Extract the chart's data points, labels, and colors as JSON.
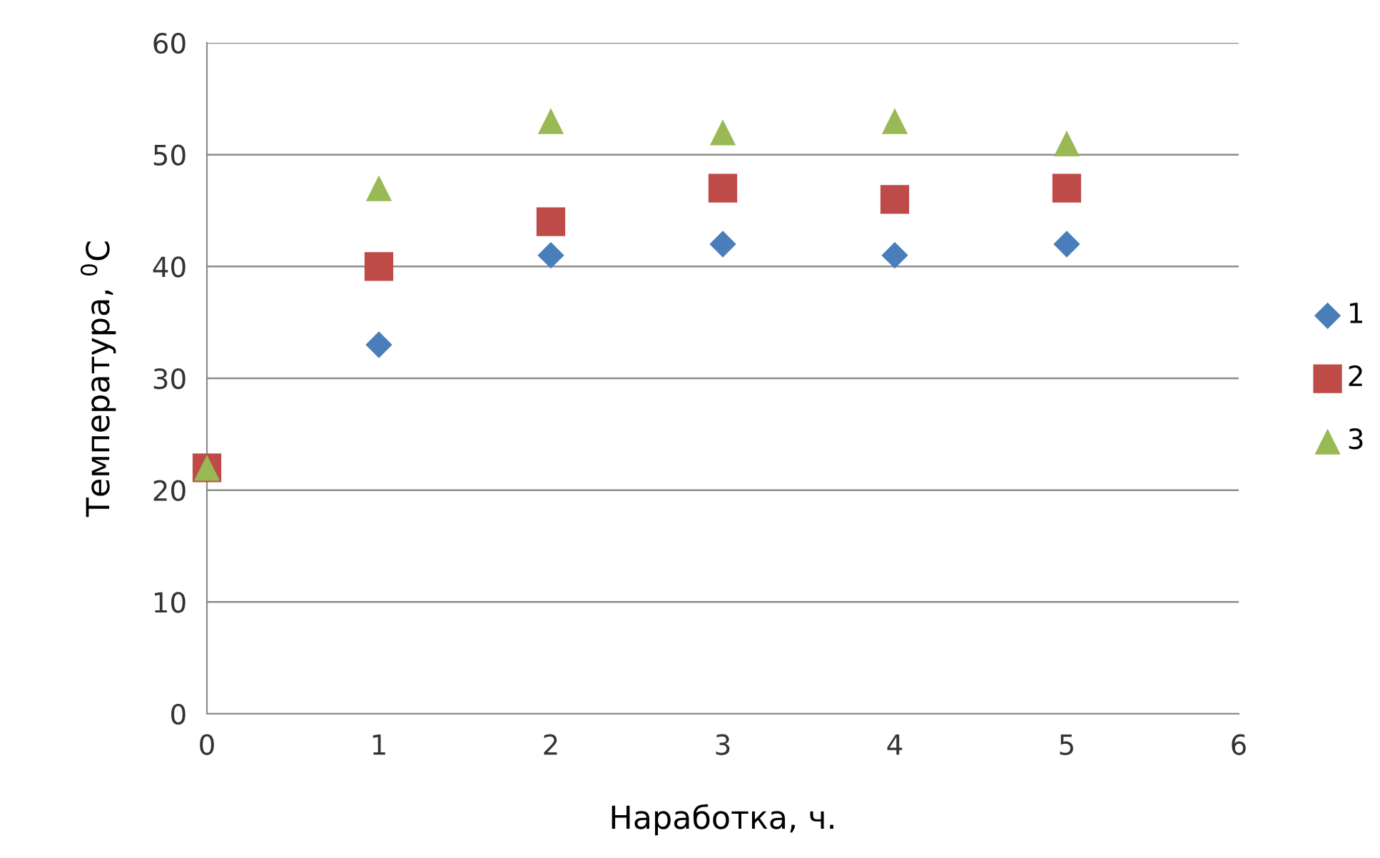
{
  "chart_data": {
    "type": "scatter",
    "xlabel": "Наработка, ч.",
    "ylabel": "Температура, $^{0}$C",
    "x": [
      0,
      1,
      2,
      3,
      4,
      5
    ],
    "series": [
      {
        "name": "1",
        "color": "#4a7ebb",
        "marker": "diamond",
        "values": [
          null,
          33,
          41,
          42,
          41,
          42
        ]
      },
      {
        "name": "2",
        "color": "#be4b48",
        "marker": "square",
        "values": [
          22,
          40,
          44,
          47,
          46,
          47
        ]
      },
      {
        "name": "3",
        "color": "#98b954",
        "marker": "triangle",
        "values": [
          22,
          47,
          53,
          52,
          53,
          51
        ]
      }
    ],
    "xlim": [
      0,
      6
    ],
    "xticks": [
      0,
      1,
      2,
      3,
      4,
      5,
      6
    ],
    "ylim": [
      0,
      60
    ],
    "yticks": [
      0,
      10,
      20,
      30,
      40,
      50,
      60
    ],
    "grid": "y",
    "legend": "right"
  }
}
